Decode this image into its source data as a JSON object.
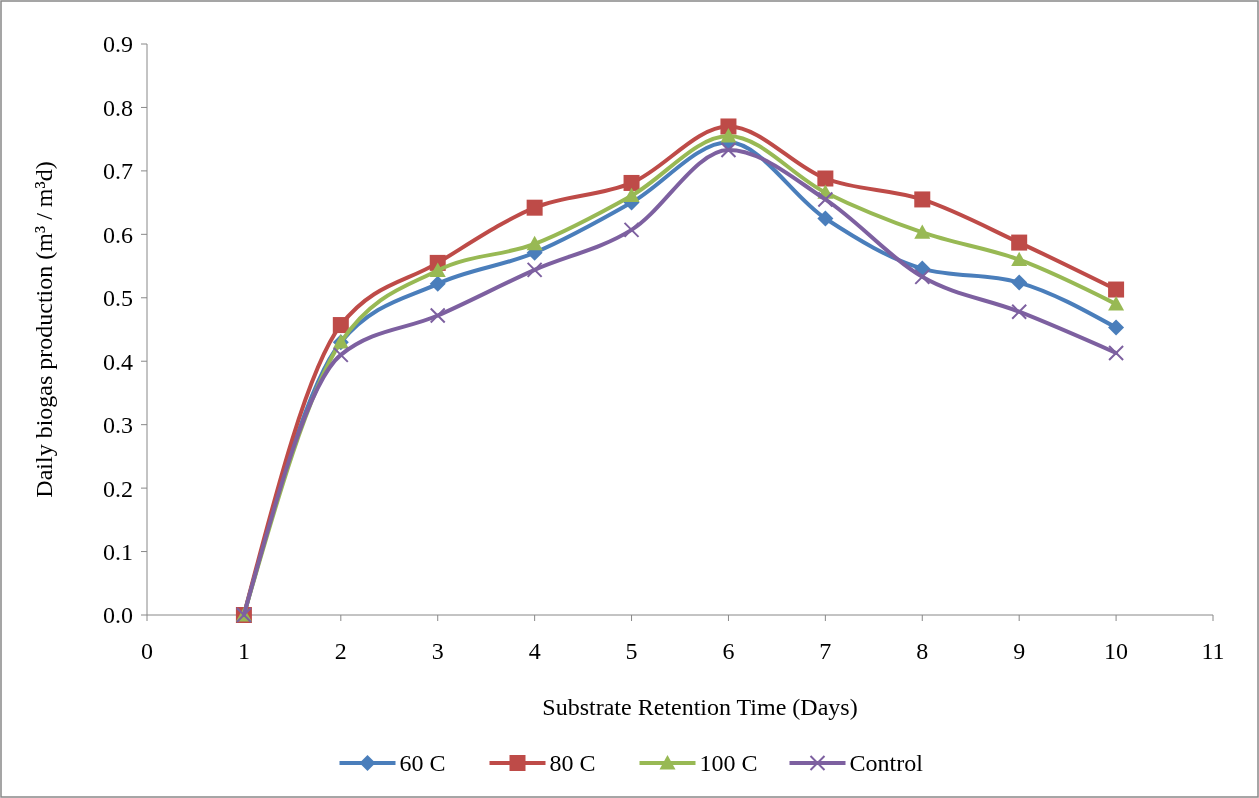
{
  "chart_data": {
    "type": "line",
    "xlabel": "Substrate Retention Time (Days)",
    "ylabel": "Daily biogas production (m³ / m³d)",
    "x": [
      1,
      2,
      3,
      4,
      5,
      6,
      7,
      8,
      9,
      10
    ],
    "xlim": [
      0,
      11
    ],
    "xticks": [
      0,
      1,
      2,
      3,
      4,
      5,
      6,
      7,
      8,
      9,
      10,
      11
    ],
    "ylim": [
      0,
      0.9
    ],
    "yticks": [
      {
        "value": 0,
        "label": "0.0"
      },
      0.1,
      0.2,
      0.3,
      0.4,
      0.5,
      0.6,
      0.7,
      0.8,
      0.9
    ],
    "grid": false,
    "legend": "bottom",
    "line_style": "solid",
    "series": [
      {
        "name": "60 C",
        "color": "#4a7ebb",
        "marker": "diamond",
        "values": [
          0,
          0.43,
          0.522,
          0.571,
          0.65,
          0.745,
          0.625,
          0.546,
          0.524,
          0.453
        ]
      },
      {
        "name": "80 C",
        "color": "#be4b48",
        "marker": "square",
        "values": [
          0,
          0.457,
          0.555,
          0.642,
          0.681,
          0.77,
          0.688,
          0.655,
          0.587,
          0.513
        ]
      },
      {
        "name": "100 C",
        "color": "#98b954",
        "marker": "triangle",
        "values": [
          0,
          0.43,
          0.543,
          0.585,
          0.661,
          0.755,
          0.666,
          0.603,
          0.56,
          0.49
        ]
      },
      {
        "name": "Control",
        "color": "#7d60a0",
        "marker": "cross",
        "values": [
          0,
          0.41,
          0.472,
          0.544,
          0.607,
          0.733,
          0.655,
          0.533,
          0.478,
          0.413
        ]
      }
    ]
  }
}
